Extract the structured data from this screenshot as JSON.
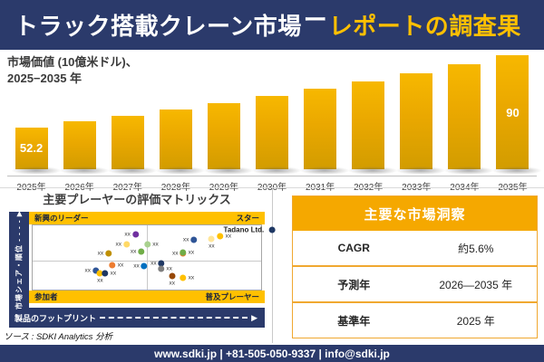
{
  "header": {
    "title_market": "トラック搭載クレーン市場",
    "title_separator": "ー",
    "title_report": "レポートの調査果"
  },
  "chart_data": [
    {
      "type": "bar",
      "title": "市場価値 (10億米ドル)、2025−2035 年",
      "title_lines": [
        "市場価値 (10億米ドル)、",
        "2025−2035 年"
      ],
      "categories": [
        "2025年",
        "2026年",
        "2027年",
        "2028年",
        "2029年",
        "2030年",
        "2031年",
        "2032年",
        "2033年",
        "2034年",
        "2035年"
      ],
      "values": [
        52.2,
        55.1,
        58.2,
        61.5,
        64.9,
        68.6,
        72.4,
        76.5,
        80.7,
        85.3,
        90
      ],
      "value_labels": [
        "52.2",
        "",
        "",
        "",
        "",
        "",
        "",
        "",
        "",
        "",
        "90"
      ],
      "ylim": [
        30,
        92
      ],
      "bar_color_top": "#F7B800",
      "bar_color_bottom": "#D29C00",
      "grid": false,
      "legend": "none"
    },
    {
      "type": "scatter",
      "title": "主要プレーヤーの評価マトリックス",
      "xlabel": "製品のフットプリント",
      "ylabel": "市場シェア・順位",
      "quadrants": {
        "top_left": "新興のリーダー",
        "top_right": "スター",
        "bottom_left": "参加者",
        "bottom_right": "普及プレーヤー"
      },
      "annotation": "Tadano Ltd.",
      "points": [
        {
          "x": 43.3,
          "y": 14.5,
          "color": "#7030A0",
          "label": "xx",
          "side": "left"
        },
        {
          "x": 39.4,
          "y": 30.0,
          "color": "#FFD966",
          "label": "xx",
          "side": "left"
        },
        {
          "x": 31.5,
          "y": 44.0,
          "color": "#BF8F00",
          "label": "xx",
          "side": "left"
        },
        {
          "x": 45.9,
          "y": 41.0,
          "color": "#70AD47",
          "label": "xx",
          "side": "left"
        },
        {
          "x": 52.0,
          "y": 29.5,
          "color": "#A9D18E",
          "label": "xx",
          "side": "right"
        },
        {
          "x": 68.9,
          "y": 23.0,
          "color": "#2F5597",
          "label": "xx",
          "side": "left"
        },
        {
          "x": 78.3,
          "y": 26.5,
          "color": "#FFE699",
          "label": "xx",
          "side": "below"
        },
        {
          "x": 83.9,
          "y": 16.5,
          "color": "#FFC000",
          "label": "xx",
          "side": "right"
        },
        {
          "x": 94.8,
          "y": 6.5,
          "color": "#1F3864",
          "label": "Tadano Ltd.",
          "side": "left",
          "bold": true
        },
        {
          "x": 64.2,
          "y": 43.5,
          "color": "#ED7D31",
          "label": "xx",
          "side": "left"
        },
        {
          "x": 67.6,
          "y": 42.0,
          "color": "#70AD47",
          "label": "xx",
          "side": "right"
        },
        {
          "x": 25.9,
          "y": 71.0,
          "color": "#2F5597",
          "label": "xx",
          "side": "left"
        },
        {
          "x": 29.5,
          "y": 80.5,
          "color": "#FFC000",
          "label": "xx",
          "side": "below"
        },
        {
          "x": 33.5,
          "y": 75.0,
          "color": "#1F3864",
          "label": "xx",
          "side": "right"
        },
        {
          "x": 36.7,
          "y": 62.5,
          "color": "#ED7D31",
          "label": "xx",
          "side": "right"
        },
        {
          "x": 47.2,
          "y": 63.0,
          "color": "#0070C0",
          "label": "xx",
          "side": "left"
        },
        {
          "x": 54.7,
          "y": 59.5,
          "color": "#1F3864",
          "label": "xx",
          "side": "left"
        },
        {
          "x": 58.0,
          "y": 67.5,
          "color": "#7F7F7F",
          "label": "xx",
          "side": "right"
        },
        {
          "x": 61.0,
          "y": 85.0,
          "color": "#974806",
          "label": "xx",
          "side": "below"
        },
        {
          "x": 67.6,
          "y": 81.0,
          "color": "#FFC000",
          "label": "xx",
          "side": "right"
        }
      ]
    }
  ],
  "insights": {
    "title": "主要な市場洞察",
    "rows": [
      {
        "label": "CAGR",
        "value": "約5.6%"
      },
      {
        "label": "予測年",
        "value": "2026—2035 年"
      },
      {
        "label": "基準年",
        "value": "2025 年"
      }
    ]
  },
  "source_note": "ソース : SDKI Analytics 分析",
  "footer": {
    "contact": "www.sdki.jp | +81-505-050-9337 | info@sdki.jp"
  },
  "colors": {
    "navy": "#2B3A6B",
    "gold_band": "#FFC000",
    "amber_header": "#F5A800",
    "bar_gold": "#EAA800",
    "title_yellow": "#FFC000"
  }
}
